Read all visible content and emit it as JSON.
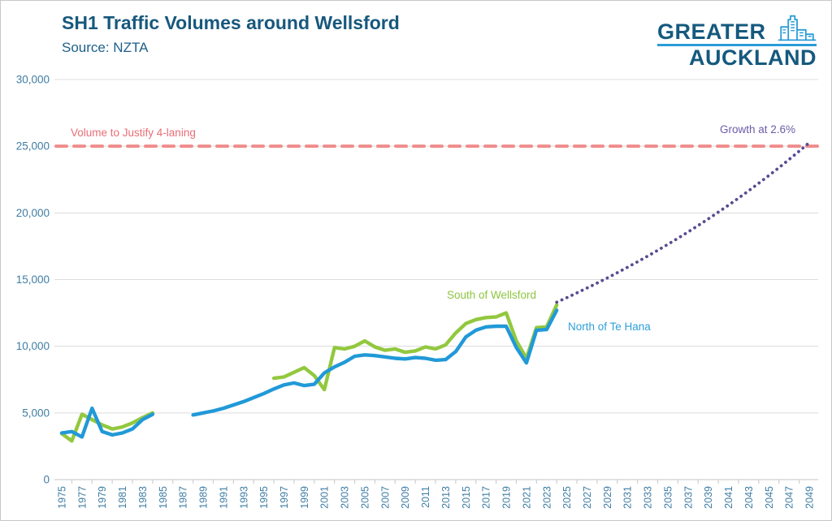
{
  "logo": {
    "line1": "GREATER",
    "line2": "AUCKLAND",
    "icon": "city-skyline-icon"
  },
  "colors": {
    "title": "#17587d",
    "axis_labels": "#3f7da4",
    "gridline": "#dcdcdc",
    "axis_line": "#cfcfcf",
    "logo_dark": "#15597e",
    "logo_light": "#2b9cd8",
    "reference_line": "#f08c8c",
    "reference_text": "#e96d76",
    "projection_line": "#5a4a92",
    "projection_text": "#6c5ca8",
    "south_line": "#92c83e",
    "south_text": "#8dc63f",
    "north_line": "#2199d8",
    "north_text": "#2d9fd8"
  },
  "chart_data": {
    "type": "line",
    "title": "SH1 Traffic Volumes around Wellsford",
    "source": "Source: NZTA",
    "grid": "horizontal",
    "legend_position": "inline-labels",
    "x_axis": {
      "min": 1975,
      "max": 2049,
      "tick_labels": [
        "1975",
        "1977",
        "1979",
        "1981",
        "1983",
        "1985",
        "1987",
        "1989",
        "1991",
        "1993",
        "1995",
        "1997",
        "1999",
        "2001",
        "2003",
        "2005",
        "2007",
        "2009",
        "2011",
        "2013",
        "2015",
        "2017",
        "2019",
        "2021",
        "2023",
        "2025",
        "2027",
        "2029",
        "2031",
        "2033",
        "2035",
        "2037",
        "2039",
        "2041",
        "2043",
        "2045",
        "2047",
        "2049"
      ]
    },
    "y_axis": {
      "min": 0,
      "max": 30000,
      "tick_step": 5000,
      "tick_labels": [
        "0",
        "5,000",
        "10,000",
        "15,000",
        "20,000",
        "25,000",
        "30,000"
      ]
    },
    "reference_line": {
      "label": "Volume to Justify 4-laning",
      "value": 25000,
      "style": "dashed"
    },
    "series": [
      {
        "name": "South of Wellsford",
        "color_key": "south_line",
        "segments": [
          {
            "years": [
              1975,
              1976,
              1977,
              1978,
              1979,
              1980,
              1981,
              1982,
              1983,
              1984
            ],
            "values": [
              3450,
              2900,
              4900,
              4500,
              4100,
              3800,
              3950,
              4250,
              4650,
              5000
            ]
          },
          {
            "years": [
              1996,
              1997,
              1998,
              1999,
              2000,
              2001,
              2002,
              2003,
              2004,
              2005,
              2006,
              2007,
              2008,
              2009,
              2010,
              2011,
              2012,
              2013,
              2014,
              2015,
              2016,
              2017,
              2018,
              2019,
              2020,
              2021,
              2022,
              2023,
              2024
            ],
            "values": [
              7600,
              7700,
              8050,
              8400,
              7800,
              6750,
              9900,
              9800,
              10000,
              10400,
              9950,
              9700,
              9800,
              9550,
              9650,
              9950,
              9800,
              10100,
              11000,
              11700,
              12000,
              12150,
              12200,
              12500,
              10400,
              9100,
              11400,
              11450,
              13100
            ]
          }
        ]
      },
      {
        "name": "North of Te Hana",
        "color_key": "north_line",
        "segments": [
          {
            "years": [
              1975,
              1976,
              1977,
              1978,
              1979,
              1980,
              1981,
              1982,
              1983,
              1984
            ],
            "values": [
              3500,
              3600,
              3200,
              5350,
              3600,
              3350,
              3500,
              3800,
              4500,
              4900
            ]
          },
          {
            "years": [
              1988,
              1989,
              1990,
              1991,
              1992,
              1993,
              1994,
              1995,
              1996,
              1997,
              1998,
              1999,
              2000,
              2001,
              2002,
              2003,
              2004,
              2005,
              2006,
              2007,
              2008,
              2009,
              2010,
              2011,
              2012,
              2013,
              2014,
              2015,
              2016,
              2017,
              2018,
              2019,
              2020,
              2021,
              2022,
              2023,
              2024
            ],
            "values": [
              4850,
              5000,
              5150,
              5350,
              5600,
              5850,
              6150,
              6450,
              6800,
              7100,
              7250,
              7050,
              7150,
              8000,
              8450,
              8800,
              9250,
              9350,
              9300,
              9200,
              9100,
              9050,
              9150,
              9100,
              8950,
              9000,
              9600,
              10700,
              11200,
              11450,
              11500,
              11500,
              9900,
              8750,
              11200,
              11250,
              12700
            ]
          }
        ]
      }
    ],
    "projection": {
      "label": "Growth at 2.6%",
      "style": "dotted",
      "start_year": 2024,
      "end_year": 2049,
      "start_value": 13300,
      "annual_growth_pct": 2.6
    }
  }
}
